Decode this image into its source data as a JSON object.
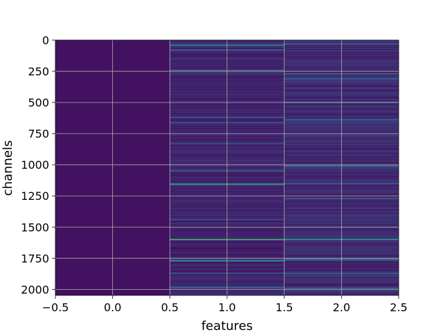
{
  "chart_data": {
    "type": "heatmap",
    "title": "",
    "xlabel": "features",
    "ylabel": "channels",
    "xlim": [
      -0.5,
      2.5
    ],
    "ylim": [
      2048,
      0
    ],
    "y_inverted": true,
    "xticks": [
      -0.5,
      0.0,
      0.5,
      1.0,
      1.5,
      2.0,
      2.5
    ],
    "xtick_labels": [
      "−0.5",
      "0.0",
      "0.5",
      "1.0",
      "1.5",
      "2.0",
      "2.5"
    ],
    "yticks": [
      0,
      250,
      500,
      750,
      1000,
      1250,
      1500,
      1750,
      2000
    ],
    "ytick_labels": [
      "0",
      "250",
      "500",
      "750",
      "1000",
      "1250",
      "1500",
      "1750",
      "2000"
    ],
    "grid": true,
    "colormap": "viridis",
    "n_rows": 2048,
    "columns": [
      {
        "feature": 0,
        "baseline": 0.05,
        "highlights": []
      },
      {
        "feature": 1,
        "baseline": 0.1,
        "highlights": [
          {
            "channel": 40,
            "value": 0.45
          },
          {
            "channel": 80,
            "value": 0.3
          },
          {
            "channel": 240,
            "value": 0.3
          },
          {
            "channel": 620,
            "value": 0.3
          },
          {
            "channel": 660,
            "value": 0.25
          },
          {
            "channel": 830,
            "value": 0.25
          },
          {
            "channel": 1050,
            "value": 0.3
          },
          {
            "channel": 1155,
            "value": 0.55
          },
          {
            "channel": 1440,
            "value": 0.25
          },
          {
            "channel": 1600,
            "value": 0.65
          },
          {
            "channel": 1770,
            "value": 0.5
          },
          {
            "channel": 1870,
            "value": 0.25
          },
          {
            "channel": 1985,
            "value": 0.35
          }
        ]
      },
      {
        "feature": 2,
        "baseline": 0.12,
        "highlights": [
          {
            "channel": 30,
            "value": 0.35
          },
          {
            "channel": 270,
            "value": 0.35
          },
          {
            "channel": 310,
            "value": 0.3
          },
          {
            "channel": 500,
            "value": 0.35
          },
          {
            "channel": 640,
            "value": 0.3
          },
          {
            "channel": 1010,
            "value": 0.35
          },
          {
            "channel": 1150,
            "value": 0.3
          },
          {
            "channel": 1270,
            "value": 0.3
          },
          {
            "channel": 1600,
            "value": 0.55
          },
          {
            "channel": 1760,
            "value": 0.4
          },
          {
            "channel": 1870,
            "value": 0.3
          },
          {
            "channel": 1990,
            "value": 0.35
          }
        ]
      }
    ]
  }
}
